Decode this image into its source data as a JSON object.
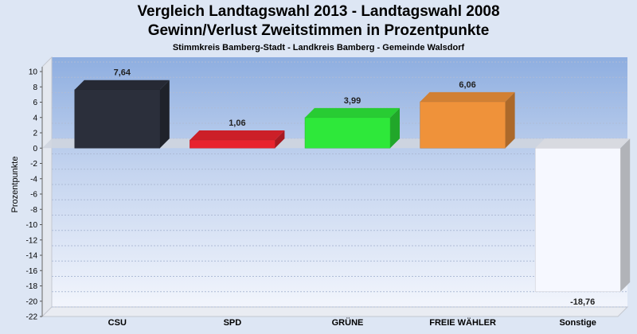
{
  "chart_data": {
    "type": "bar",
    "title": "Vergleich Landtagswahl 2013 - Landtagswahl 2008",
    "subtitle": "Gewinn/Verlust Zweitstimmen in Prozentpunkte",
    "subtitle2": "Stimmkreis Bamberg-Stadt - Landkreis Bamberg - Gemeinde Walsdorf",
    "ylabel": "Prozentpunkte",
    "xlabel": "",
    "ylim": [
      -22,
      10
    ],
    "yticks": [
      10,
      8,
      6,
      4,
      2,
      0,
      -2,
      -4,
      -6,
      -8,
      -10,
      -12,
      -14,
      -16,
      -18,
      -20,
      -22
    ],
    "categories": [
      "CSU",
      "SPD",
      "GRÜNE",
      "FREIE WÄHLER",
      "Sonstige"
    ],
    "values": [
      7.64,
      1.06,
      3.99,
      6.06,
      -18.76
    ],
    "value_labels": [
      "7,64",
      "1,06",
      "3,99",
      "6,06",
      "-18,76"
    ],
    "colors": [
      "#2b2f3b",
      "#e8232e",
      "#2ee83a",
      "#ef923a",
      "#f6f8ff"
    ],
    "grid": true
  }
}
